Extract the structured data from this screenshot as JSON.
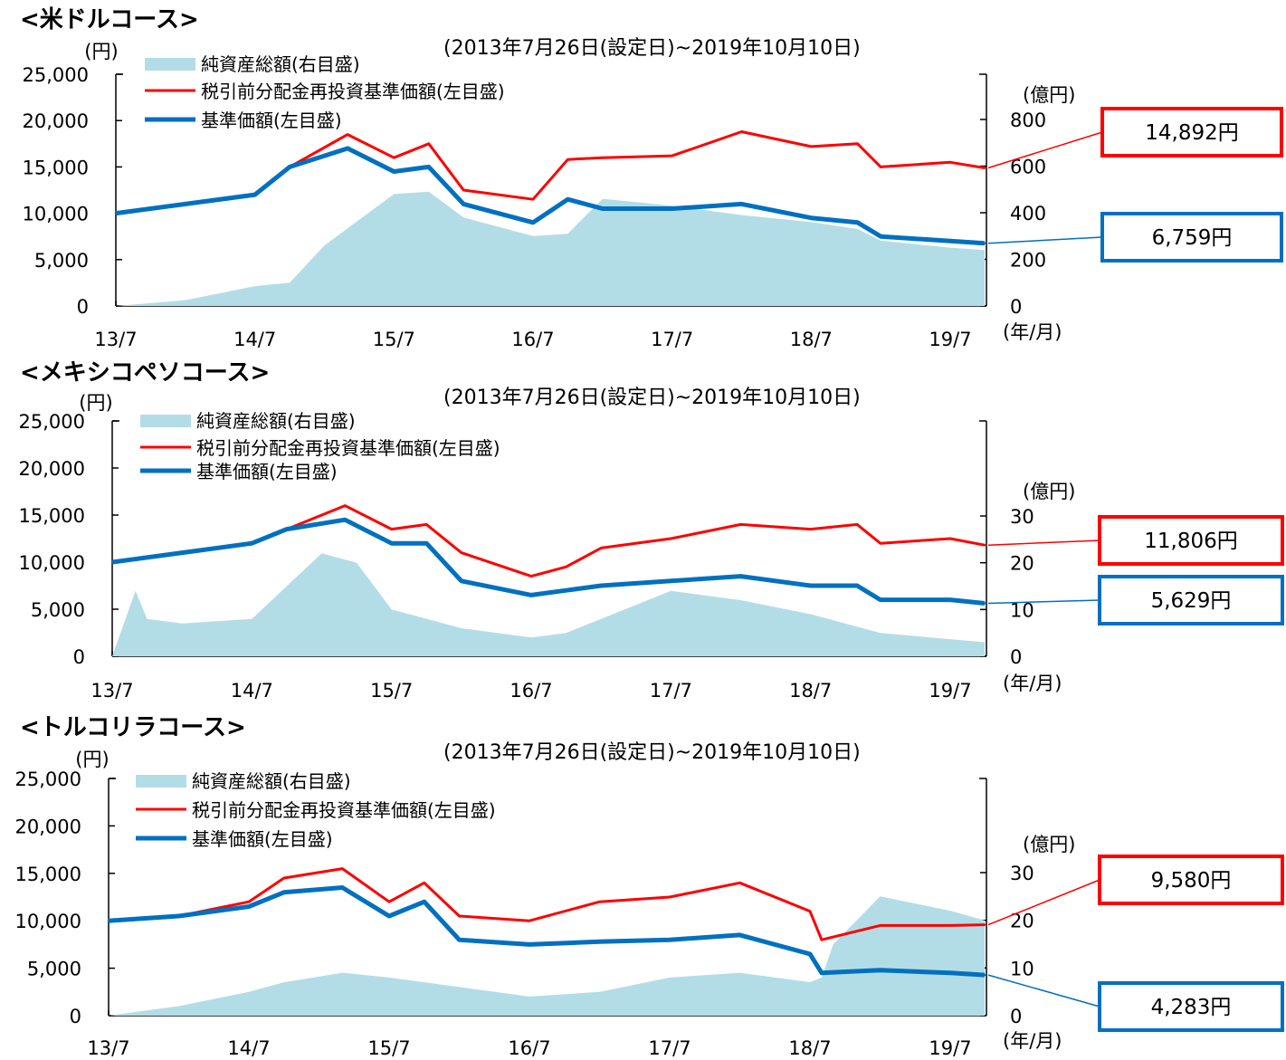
{
  "chart_data": [
    {
      "type": "line",
      "title": "<米ドルコース>",
      "period": "(2013年7月26日(設定日)~2019年10月10日)",
      "left_axis_unit": "(円)",
      "right_axis_unit": "(億円)",
      "x_axis_unit": "(年/月)",
      "x_ticks": [
        "13/7",
        "14/7",
        "15/7",
        "16/7",
        "17/7",
        "18/7",
        "19/7"
      ],
      "left_ticks": [
        "25,000",
        "20,000",
        "15,000",
        "10,000",
        "5,000",
        "0"
      ],
      "right_ticks": [
        "800",
        "600",
        "400",
        "200",
        "0"
      ],
      "ylim_left": [
        0,
        25000
      ],
      "ylim_right": [
        0,
        800
      ],
      "legend": [
        {
          "label": "純資産総額(右目盛)",
          "color": "#b3dde6",
          "kind": "area"
        },
        {
          "label": "税引前分配金再投資基準価額(左目盛)",
          "color": "#ff0000",
          "kind": "line"
        },
        {
          "label": "基準価額(左目盛)",
          "color": "#0070c0",
          "kind": "line"
        }
      ],
      "callouts": [
        {
          "label": "14,892円",
          "color": "#ff0000",
          "value": 14892
        },
        {
          "label": "6,759円",
          "color": "#0070c0",
          "value": 6759
        }
      ],
      "series": [
        {
          "name": "純資産総額(右目盛)",
          "axis": "right",
          "color": "#b3dde6",
          "kind": "area",
          "x": [
            "2013-07",
            "2014-01",
            "2014-07",
            "2014-10",
            "2015-01",
            "2015-07",
            "2015-10",
            "2016-01",
            "2016-07",
            "2016-10",
            "2017-01",
            "2017-07",
            "2018-01",
            "2018-07",
            "2018-11",
            "2019-01",
            "2019-07",
            "2019-10"
          ],
          "values": [
            0,
            25,
            85,
            100,
            260,
            480,
            490,
            380,
            300,
            310,
            460,
            430,
            390,
            360,
            330,
            280,
            250,
            240
          ]
        },
        {
          "name": "税引前分配金再投資基準価額(左目盛)",
          "axis": "left",
          "color": "#ff0000",
          "kind": "line",
          "x": [
            "2013-07",
            "2014-01",
            "2014-07",
            "2014-10",
            "2015-03",
            "2015-07",
            "2015-10",
            "2016-01",
            "2016-07",
            "2016-10",
            "2017-01",
            "2017-07",
            "2018-01",
            "2018-07",
            "2018-11",
            "2019-01",
            "2019-07",
            "2019-10"
          ],
          "values": [
            10000,
            11000,
            12000,
            15000,
            18500,
            16000,
            17500,
            12500,
            11500,
            15800,
            16000,
            16200,
            18800,
            17200,
            17500,
            15000,
            15500,
            14892
          ]
        },
        {
          "name": "基準価額(左目盛)",
          "axis": "left",
          "color": "#0070c0",
          "kind": "line",
          "x": [
            "2013-07",
            "2014-01",
            "2014-07",
            "2014-10",
            "2015-03",
            "2015-07",
            "2015-10",
            "2016-01",
            "2016-07",
            "2016-10",
            "2017-01",
            "2017-07",
            "2018-01",
            "2018-07",
            "2018-11",
            "2019-01",
            "2019-07",
            "2019-10"
          ],
          "values": [
            10000,
            11000,
            12000,
            15000,
            17000,
            14500,
            15000,
            11000,
            9000,
            11500,
            10500,
            10500,
            11000,
            9500,
            9000,
            7500,
            7000,
            6759
          ]
        }
      ]
    },
    {
      "type": "line",
      "title": "<メキシコペソコース>",
      "period": "(2013年7月26日(設定日)~2019年10月10日)",
      "left_axis_unit": "(円)",
      "right_axis_unit": "(億円)",
      "x_axis_unit": "(年/月)",
      "x_ticks": [
        "13/7",
        "14/7",
        "15/7",
        "16/7",
        "17/7",
        "18/7",
        "19/7"
      ],
      "left_ticks": [
        "25,000",
        "20,000",
        "15,000",
        "10,000",
        "5,000",
        "0"
      ],
      "right_ticks": [
        "30",
        "20",
        "10",
        "0"
      ],
      "ylim_left": [
        0,
        25000
      ],
      "ylim_right": [
        0,
        48
      ],
      "legend": [
        {
          "label": "純資産総額(右目盛)",
          "color": "#b3dde6",
          "kind": "area"
        },
        {
          "label": "税引前分配金再投資基準価額(左目盛)",
          "color": "#ff0000",
          "kind": "line"
        },
        {
          "label": "基準価額(左目盛)",
          "color": "#0070c0",
          "kind": "line"
        }
      ],
      "callouts": [
        {
          "label": "11,806円",
          "color": "#ff0000",
          "value": 11806
        },
        {
          "label": "5,629円",
          "color": "#0070c0",
          "value": 5629
        }
      ],
      "series": [
        {
          "name": "純資産総額(右目盛)",
          "axis": "right",
          "color": "#b3dde6",
          "kind": "area",
          "x": [
            "2013-07",
            "2013-09",
            "2013-10",
            "2014-01",
            "2014-07",
            "2014-10",
            "2015-01",
            "2015-04",
            "2015-07",
            "2016-01",
            "2016-07",
            "2016-10",
            "2017-01",
            "2017-07",
            "2018-01",
            "2018-07",
            "2019-01",
            "2019-10"
          ],
          "values": [
            0,
            14,
            8,
            7,
            8,
            15,
            22,
            20,
            10,
            6,
            4,
            5,
            8,
            14,
            12,
            9,
            5,
            3
          ]
        },
        {
          "name": "税引前分配金再投資基準価額(左目盛)",
          "axis": "left",
          "color": "#ff0000",
          "kind": "line",
          "x": [
            "2013-07",
            "2014-01",
            "2014-07",
            "2014-10",
            "2015-03",
            "2015-07",
            "2015-10",
            "2016-01",
            "2016-07",
            "2016-10",
            "2017-01",
            "2017-07",
            "2018-01",
            "2018-07",
            "2018-11",
            "2019-01",
            "2019-07",
            "2019-10"
          ],
          "values": [
            10000,
            11000,
            12000,
            13500,
            16000,
            13500,
            14000,
            11000,
            8500,
            9500,
            11500,
            12500,
            14000,
            13500,
            14000,
            12000,
            12500,
            11806
          ]
        },
        {
          "name": "基準価額(左目盛)",
          "axis": "left",
          "color": "#0070c0",
          "kind": "line",
          "x": [
            "2013-07",
            "2014-01",
            "2014-07",
            "2014-10",
            "2015-03",
            "2015-07",
            "2015-10",
            "2016-01",
            "2016-07",
            "2016-10",
            "2017-01",
            "2017-07",
            "2018-01",
            "2018-07",
            "2018-11",
            "2019-01",
            "2019-07",
            "2019-10"
          ],
          "values": [
            10000,
            11000,
            12000,
            13500,
            14500,
            12000,
            12000,
            8000,
            6500,
            7000,
            7500,
            8000,
            8500,
            7500,
            7500,
            6000,
            6000,
            5629
          ]
        }
      ]
    },
    {
      "type": "line",
      "title": "<トルコリラコース>",
      "period": "(2013年7月26日(設定日)~2019年10月10日)",
      "left_axis_unit": "(円)",
      "right_axis_unit": "(億円)",
      "x_axis_unit": "(年/月)",
      "x_ticks": [
        "13/7",
        "14/7",
        "15/7",
        "16/7",
        "17/7",
        "18/7",
        "19/7"
      ],
      "left_ticks": [
        "25,000",
        "20,000",
        "15,000",
        "10,000",
        "5,000",
        "0"
      ],
      "right_ticks": [
        "30",
        "20",
        "10",
        "0"
      ],
      "ylim_left": [
        0,
        25000
      ],
      "ylim_right": [
        0,
        48
      ],
      "legend": [
        {
          "label": "純資産総額(右目盛)",
          "color": "#b3dde6",
          "kind": "area"
        },
        {
          "label": "税引前分配金再投資基準価額(左目盛)",
          "color": "#ff0000",
          "kind": "line"
        },
        {
          "label": "基準価額(左目盛)",
          "color": "#0070c0",
          "kind": "line"
        }
      ],
      "callouts": [
        {
          "label": "9,580円",
          "color": "#ff0000",
          "value": 9580
        },
        {
          "label": "4,283円",
          "color": "#0070c0",
          "value": 4283
        }
      ],
      "series": [
        {
          "name": "純資産総額(右目盛)",
          "axis": "right",
          "color": "#b3dde6",
          "kind": "area",
          "x": [
            "2013-07",
            "2014-01",
            "2014-07",
            "2014-10",
            "2015-03",
            "2015-07",
            "2016-01",
            "2016-07",
            "2017-01",
            "2017-07",
            "2018-01",
            "2018-07",
            "2018-08",
            "2018-09",
            "2019-01",
            "2019-07",
            "2019-10"
          ],
          "values": [
            0,
            2,
            5,
            7,
            9,
            8,
            6,
            4,
            5,
            8,
            9,
            7,
            8,
            15,
            25,
            22,
            20
          ]
        },
        {
          "name": "税引前分配金再投資基準価額(左目盛)",
          "axis": "left",
          "color": "#ff0000",
          "kind": "line",
          "x": [
            "2013-07",
            "2014-01",
            "2014-07",
            "2014-10",
            "2015-03",
            "2015-07",
            "2015-10",
            "2016-01",
            "2016-07",
            "2017-01",
            "2017-07",
            "2018-01",
            "2018-07",
            "2018-08",
            "2019-01",
            "2019-07",
            "2019-10"
          ],
          "values": [
            10000,
            10500,
            12000,
            14500,
            15500,
            12000,
            14000,
            10500,
            10000,
            12000,
            12500,
            14000,
            11000,
            8000,
            9500,
            9500,
            9580
          ]
        },
        {
          "name": "基準価額(左目盛)",
          "axis": "left",
          "color": "#0070c0",
          "kind": "line",
          "x": [
            "2013-07",
            "2014-01",
            "2014-07",
            "2014-10",
            "2015-03",
            "2015-07",
            "2015-10",
            "2016-01",
            "2016-07",
            "2017-01",
            "2017-07",
            "2018-01",
            "2018-07",
            "2018-08",
            "2019-01",
            "2019-07",
            "2019-10"
          ],
          "values": [
            10000,
            10500,
            11500,
            13000,
            13500,
            10500,
            12000,
            8000,
            7500,
            7800,
            8000,
            8500,
            6500,
            4500,
            4800,
            4500,
            4283
          ]
        }
      ]
    }
  ]
}
